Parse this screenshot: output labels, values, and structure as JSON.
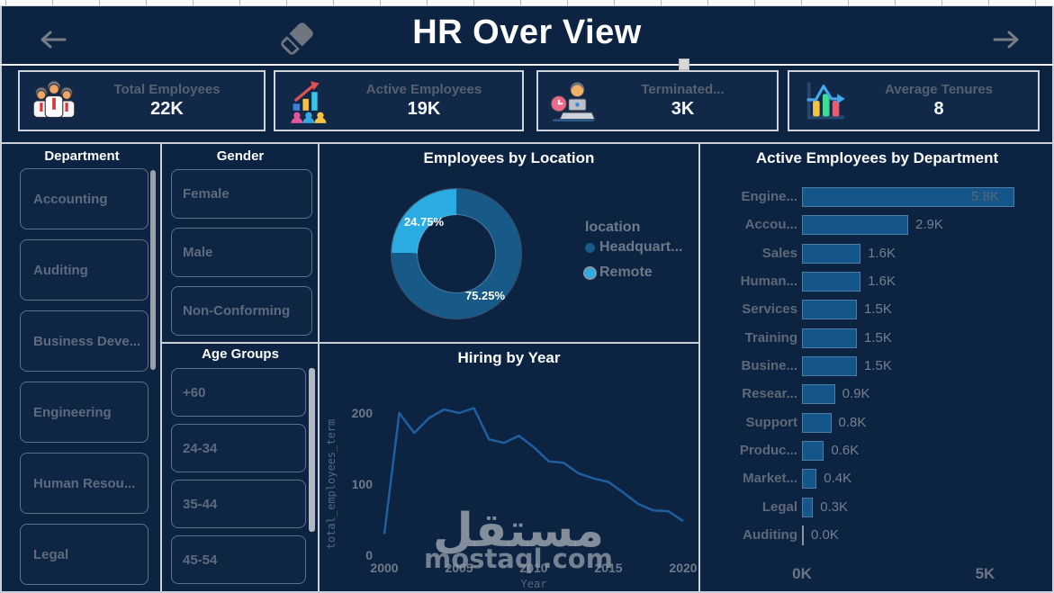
{
  "header": {
    "title": "HR Over View"
  },
  "kpis": [
    {
      "label": "Total Employees",
      "value": "22K",
      "icon": "team-icon"
    },
    {
      "label": "Active Employees",
      "value": "19K",
      "icon": "growth-icon"
    },
    {
      "label": "Terminated...",
      "value": "3K",
      "icon": "terminated-icon"
    },
    {
      "label": "Average Tenures",
      "value": "8",
      "icon": "tenure-icon"
    }
  ],
  "slicers": {
    "department": {
      "title": "Department",
      "items": [
        "Accounting",
        "Auditing",
        "Business Deve...",
        "Engineering",
        "Human Resou...",
        "Legal"
      ]
    },
    "gender": {
      "title": "Gender",
      "items": [
        "Female",
        "Male",
        "Non-Conforming"
      ]
    },
    "age_groups": {
      "title": "Age Groups",
      "items": [
        "+60",
        "24-34",
        "35-44",
        "45-54"
      ]
    }
  },
  "chart_data": [
    {
      "type": "pie",
      "title": "Employees by Location",
      "legend_title": "location",
      "legend_position": "right",
      "slices": [
        {
          "label": "Headquart...",
          "value": 75.25,
          "pct_label": "75.25%",
          "color": "#175a88"
        },
        {
          "label": "Remote",
          "value": 24.75,
          "pct_label": "24.75%",
          "color": "#2aabe2"
        }
      ]
    },
    {
      "type": "line",
      "title": "Hiring by Year",
      "xlabel": "Year",
      "ylabel": "total_employees_term",
      "x": [
        2000,
        2001,
        2002,
        2003,
        2004,
        2005,
        2006,
        2007,
        2008,
        2009,
        2010,
        2011,
        2012,
        2013,
        2014,
        2015,
        2016,
        2017,
        2018,
        2019,
        2020
      ],
      "values": [
        30,
        200,
        172,
        193,
        205,
        200,
        207,
        163,
        158,
        168,
        152,
        132,
        130,
        115,
        108,
        103,
        88,
        72,
        63,
        62,
        48
      ],
      "yticks": [
        0,
        100,
        200
      ],
      "xticks": [
        2000,
        2005,
        2010,
        2015,
        2020
      ],
      "ylim": [
        0,
        230
      ],
      "grid": false,
      "color": "#1f5fa0"
    },
    {
      "type": "bar",
      "title": "Active Employees by Department",
      "orientation": "horizontal",
      "categories": [
        "Engine...",
        "Accou...",
        "Sales",
        "Human...",
        "Services",
        "Training",
        "Busine...",
        "Resear...",
        "Support",
        "Produc...",
        "Market...",
        "Legal",
        "Auditing"
      ],
      "values": [
        5.8,
        2.9,
        1.6,
        1.6,
        1.5,
        1.5,
        1.5,
        0.9,
        0.8,
        0.6,
        0.4,
        0.3,
        0.0
      ],
      "value_labels": [
        "5.8K",
        "2.9K",
        "1.6K",
        "1.6K",
        "1.5K",
        "1.5K",
        "1.5K",
        "0.9K",
        "0.8K",
        "0.6K",
        "0.4K",
        "0.3K",
        "0.0K"
      ],
      "xticks": [
        "0K",
        "5K"
      ],
      "xlim": [
        0,
        5.8
      ],
      "color": "#15568a"
    }
  ],
  "watermark": {
    "arabic": "مستقل",
    "domain": "mostaql.com"
  },
  "colors": {
    "background": "#0d2342",
    "panel_border": "#c9ced8",
    "headquarters": "#175a88",
    "remote": "#2aabe2",
    "line": "#1f5fa0",
    "bar": "#15568a"
  }
}
